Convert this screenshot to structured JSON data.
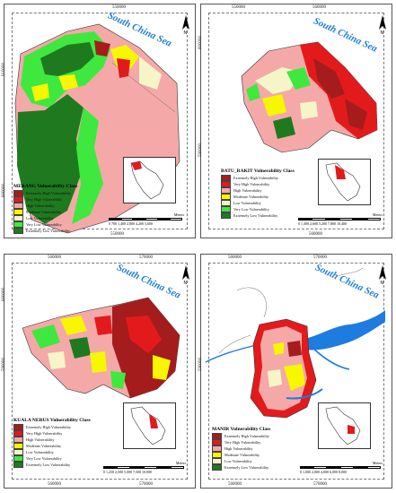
{
  "sea_label": "South China Sea",
  "colors": {
    "extremely_high": "#a51c1c",
    "very_high": "#e31a1c",
    "high": "#f4a9a8",
    "moderate": "#f7f700",
    "low": "#f5f5c8",
    "very_low": "#3fe83f",
    "extremely_low": "#1f7a1f",
    "water": "#1e7be0"
  },
  "panels": [
    {
      "id": "merang",
      "coords": {
        "top": [
          "550000"
        ],
        "bottom": [
          "550000"
        ],
        "left": [
          "610000",
          "600000"
        ]
      },
      "legend_title": "MERANG Vulnerability Class",
      "legend": [
        "Extremely High Vulnerability",
        "Very High Vulnerability",
        "High Vulnerability",
        "Moderate Vulnerability",
        "Low Vulnerability",
        "Very Low Vulnerability",
        "Extremely Low Vulnerability"
      ],
      "scale": "0  700 1,400     2,800     4,200     5,600",
      "unit": "Meters"
    },
    {
      "id": "batu-rakit",
      "coords": {
        "top": [
          "550000",
          "560000"
        ],
        "bottom": [
          "560000"
        ],
        "left": [
          "600000",
          "590000"
        ]
      },
      "legend_title": "BATU_RAKIT Vulnerability Class",
      "legend": [
        "Extremely High Vulnerability",
        "Very High Vulnerability",
        "High Vulnerability",
        "Moderate Vulnerability",
        "Low Vulnerability",
        "Very Low Vulnerability",
        "Extremely Low Vulnerability"
      ],
      "scale": "0  1,300 2,600     5,200     7,800     10,400",
      "unit": "Meters"
    },
    {
      "id": "kuala-nerus",
      "coords": {
        "top": [
          "560000",
          "570000"
        ],
        "bottom": [
          "560000",
          "570000"
        ],
        "left": [
          "600000",
          "590000"
        ]
      },
      "legend_title": "KUALA NERUS Vulnerability Class",
      "legend": [
        "Extremely High Vulnerability",
        "Very High Vulnerability",
        "High Vulnerability",
        "Moderate Vulnerability",
        "Low Vulnerability",
        "Very Low Vulnerability",
        "Extremely Low Vulnerability"
      ],
      "scale": "0  1,250 2,500     5,000     7,500     10,000",
      "unit": "Meters"
    },
    {
      "id": "manir",
      "coords": {
        "top": [
          "560000",
          "570000"
        ],
        "bottom": [
          "560000",
          "570000"
        ],
        "left": [
          "590000"
        ]
      },
      "legend_title": "MANIR Vulnerability Class",
      "legend": [
        "Extremely High Vulnerability",
        "Very High Vulnerability",
        "High Vulnerability",
        "Moderate Vulnerability",
        "Low Vulnerability",
        "Extremely Low Vulnerability"
      ],
      "scale": "0  1,000 2,000     4,000     6,000     8,000",
      "unit": "Meters"
    }
  ]
}
